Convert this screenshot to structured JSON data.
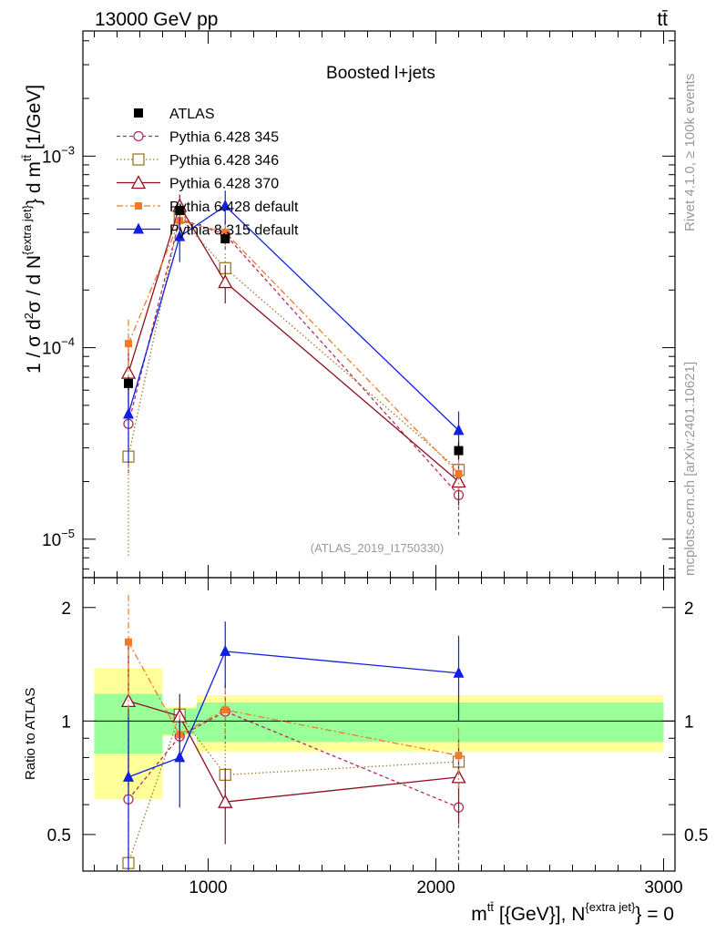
{
  "header": {
    "energy_label": "13000 GeV pp",
    "process_label": "tt̄"
  },
  "side_labels": {
    "rivet": "Rivet 4.1.0, ≥ 100k events",
    "mcplots": "mcplots.cern.ch [arXiv:2401.10621]"
  },
  "chart_data": {
    "type": "line",
    "title": "Boosted l+jets",
    "analysis_label": "(ATLAS_2019_I1750330)",
    "xlabel": "m^{tt̄} [{GeV}], N^{extra jet} = 0",
    "ylabel": "1 / σ d²σ / d N^{extra jet} d m^{tt̄} [1/GeV]",
    "ratio_ylabel": "Ratio to ATLAS",
    "xlim": [
      450,
      3050
    ],
    "ylim": [
      6.3e-06,
      0.0045
    ],
    "ratio_ylim": [
      0.4,
      2.4
    ],
    "log_y": true,
    "x_ticks": [
      1000,
      2000,
      3000
    ],
    "x_tick_labels": [
      "1000",
      "2000",
      "3000"
    ],
    "y_ticks": [
      1e-05,
      0.0001,
      0.001
    ],
    "y_tick_labels": [
      {
        "base": "10",
        "exp": "−5"
      },
      {
        "base": "10",
        "exp": "−4"
      },
      {
        "base": "10",
        "exp": "−3"
      }
    ],
    "ratio_ticks": [
      0.5,
      1,
      2
    ],
    "ratio_tick_labels": [
      "0.5",
      "1",
      "2"
    ],
    "bins": [
      {
        "low": 500,
        "high": 800
      },
      {
        "low": 800,
        "high": 950
      },
      {
        "low": 950,
        "high": 1200
      },
      {
        "low": 1200,
        "high": 3000
      }
    ],
    "x": [
      650,
      875,
      1075,
      2100
    ],
    "data": {
      "name": "ATLAS",
      "values": [
        6.5e-05,
        0.00052,
        0.00037,
        2.9e-05
      ],
      "errors": [
        5e-06,
        3e-05,
        2e-05,
        3e-06
      ],
      "band_inner": [
        0.18,
        0.08,
        0.12,
        0.12
      ],
      "band_outer": [
        0.38,
        0.09,
        0.17,
        0.17
      ]
    },
    "series": [
      {
        "name": "Pythia 6.428 345",
        "color": "#b0305a",
        "dash": "4,3",
        "marker": "open-circle",
        "values": [
          4e-05,
          0.00047,
          0.00039,
          1.7e-05
        ],
        "errors": [
          1.8e-05,
          7e-05,
          7e-05,
          6.5e-06
        ],
        "ratio": [
          0.62,
          0.91,
          1.06,
          0.59
        ]
      },
      {
        "name": "Pythia 6.428 346",
        "color": "#9a7a2c",
        "dash": "1.5,2.5",
        "marker": "open-square",
        "values": [
          2.7e-05,
          0.00048,
          0.00026,
          2.3e-05
        ],
        "errors": [
          1.9e-05,
          6e-05,
          5e-05,
          4e-06
        ],
        "ratio": [
          0.42,
          1.04,
          0.72,
          0.78
        ]
      },
      {
        "name": "Pythia 6.428 370",
        "color": "#8f1020",
        "dash": "",
        "marker": "open-triangle",
        "values": [
          7.4e-05,
          0.00055,
          0.00022,
          2e-05
        ],
        "errors": [
          3e-05,
          8e-05,
          5e-05,
          5e-06
        ],
        "ratio": [
          1.13,
          1.03,
          0.61,
          0.71
        ]
      },
      {
        "name": "Pythia 6.428 default",
        "color": "#f07a2a",
        "dash": "7,3,2,3",
        "marker": "filled-square",
        "values": [
          0.000105,
          0.00046,
          0.0004,
          2.2e-05
        ],
        "errors": [
          3.5e-05,
          6e-05,
          6e-05,
          4e-06
        ],
        "ratio": [
          1.62,
          0.92,
          1.07,
          0.81
        ]
      },
      {
        "name": "Pythia 8.315 default",
        "color": "#1020e0",
        "dash": "",
        "marker": "filled-triangle",
        "values": [
          4.5e-05,
          0.00038,
          0.00055,
          3.7e-05
        ],
        "errors": [
          2e-05,
          0.0001,
          0.00011,
          9.5e-06
        ],
        "ratio": [
          0.71,
          0.8,
          1.53,
          1.34
        ]
      }
    ],
    "legend_placement": "top-left"
  }
}
